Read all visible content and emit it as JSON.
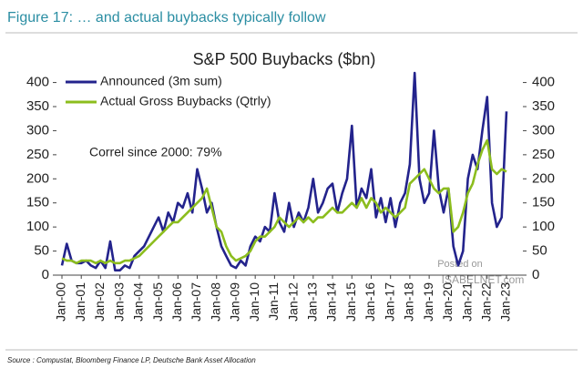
{
  "header": {
    "title": "Figure 17: … and actual buybacks typically follow"
  },
  "chart_data": {
    "type": "line",
    "title": "S&P 500 Buybacks ($bn)",
    "categories": [
      "Jan-00",
      null,
      null,
      null,
      "Jan-01",
      null,
      null,
      null,
      "Jan-02",
      null,
      null,
      null,
      "Jan-03",
      null,
      null,
      null,
      "Jan-04",
      null,
      null,
      null,
      "Jan-05",
      null,
      null,
      null,
      "Jan-06",
      null,
      null,
      null,
      "Jan-07",
      null,
      null,
      null,
      "Jan-08",
      null,
      null,
      null,
      "Jan-09",
      null,
      null,
      null,
      "Jan-10",
      null,
      null,
      null,
      "Jan-11",
      null,
      null,
      null,
      "Jan-12",
      null,
      null,
      null,
      "Jan-13",
      null,
      null,
      null,
      "Jan-14",
      null,
      null,
      null,
      "Jan-15",
      null,
      null,
      null,
      "Jan-16",
      null,
      null,
      null,
      "Jan-17",
      null,
      null,
      null,
      "Jan-18",
      null,
      null,
      null,
      "Jan-19",
      null,
      null,
      null,
      "Jan-20",
      null,
      null,
      null,
      "Jan-21",
      null,
      null,
      null,
      "Jan-22",
      null,
      null,
      null,
      "Jan-23"
    ],
    "series": [
      {
        "name": "Announced (3m sum)",
        "color": "#23238c",
        "values": [
          20,
          65,
          30,
          25,
          25,
          30,
          20,
          15,
          30,
          15,
          70,
          10,
          10,
          20,
          15,
          40,
          50,
          60,
          80,
          100,
          120,
          90,
          130,
          110,
          150,
          140,
          170,
          130,
          220,
          180,
          130,
          150,
          100,
          60,
          40,
          20,
          15,
          30,
          20,
          60,
          80,
          70,
          100,
          90,
          170,
          110,
          90,
          150,
          100,
          130,
          110,
          140,
          200,
          130,
          150,
          180,
          190,
          130,
          170,
          200,
          310,
          140,
          180,
          160,
          220,
          120,
          160,
          110,
          160,
          100,
          150,
          170,
          230,
          420,
          200,
          150,
          170,
          300,
          180,
          130,
          180,
          60,
          20,
          50,
          200,
          250,
          220,
          300,
          370,
          150,
          100,
          120,
          340
        ]
      },
      {
        "name": "Actual Gross Buybacks (Qtrly)",
        "color": "#8cbd1e",
        "values": [
          35,
          30,
          30,
          25,
          30,
          30,
          30,
          25,
          30,
          25,
          30,
          25,
          25,
          30,
          30,
          35,
          40,
          50,
          60,
          70,
          80,
          90,
          100,
          110,
          110,
          120,
          130,
          140,
          150,
          160,
          180,
          140,
          100,
          90,
          60,
          40,
          30,
          35,
          40,
          50,
          70,
          80,
          80,
          90,
          100,
          120,
          110,
          100,
          110,
          120,
          110,
          120,
          110,
          120,
          120,
          130,
          140,
          130,
          130,
          140,
          150,
          140,
          160,
          140,
          160,
          150,
          130,
          140,
          130,
          120,
          130,
          140,
          190,
          200,
          210,
          220,
          200,
          180,
          170,
          180,
          180,
          90,
          100,
          130,
          170,
          190,
          230,
          260,
          280,
          220,
          210,
          220,
          215
        ]
      }
    ],
    "ylim": [
      0,
      420
    ],
    "yticks": [
      0,
      50,
      100,
      150,
      200,
      250,
      300,
      350,
      400
    ],
    "y2lim": [
      0,
      420
    ],
    "y2ticks": [
      0,
      50,
      100,
      150,
      200,
      250,
      300,
      350,
      400
    ],
    "annotation": "Correl since 2000: 79%",
    "watermark": [
      "Posted on",
      "ISABELNET.com"
    ],
    "legend": "upper left"
  },
  "footer": {
    "source": "Source : Compustat, Bloomberg Finance LP, Deutsche Bank Asset Allocation"
  }
}
